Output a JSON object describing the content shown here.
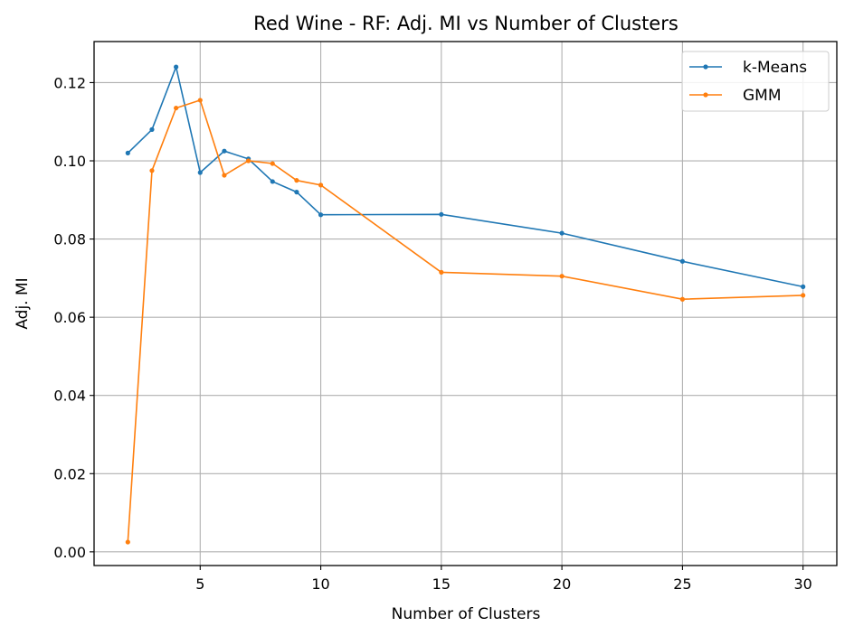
{
  "chart_data": {
    "type": "line",
    "title": "Red Wine - RF: Adj. MI vs Number of Clusters",
    "xlabel": "Number of Clusters",
    "ylabel": "Adj. MI",
    "xlim": [
      0.6,
      31.4
    ],
    "ylim": [
      -0.0035,
      0.1305
    ],
    "xticks": [
      5,
      10,
      15,
      20,
      25,
      30
    ],
    "xtick_labels": [
      "5",
      "10",
      "15",
      "20",
      "25",
      "30"
    ],
    "yticks": [
      0.0,
      0.02,
      0.04,
      0.06,
      0.08,
      0.1,
      0.12
    ],
    "ytick_labels": [
      "0.00",
      "0.02",
      "0.04",
      "0.06",
      "0.08",
      "0.10",
      "0.12"
    ],
    "grid": true,
    "legend_position": "top-right",
    "x": [
      2,
      3,
      4,
      5,
      6,
      7,
      8,
      9,
      10,
      15,
      20,
      25,
      30
    ],
    "series": [
      {
        "name": "k-Means",
        "color": "#1f77b4",
        "values": [
          0.102,
          0.108,
          0.124,
          0.097,
          0.1025,
          0.1005,
          0.0947,
          0.092,
          0.0862,
          0.0863,
          0.0815,
          0.0743,
          0.0678
        ]
      },
      {
        "name": "GMM",
        "color": "#ff7f0e",
        "values": [
          0.0025,
          0.0975,
          0.1135,
          0.1155,
          0.0963,
          0.1,
          0.0993,
          0.095,
          0.0938,
          0.0715,
          0.0705,
          0.0646,
          0.0656
        ]
      }
    ]
  }
}
